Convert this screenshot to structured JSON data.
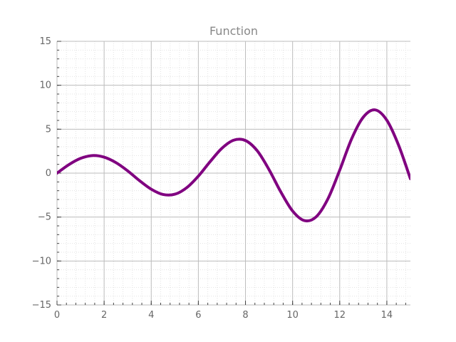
{
  "chart_data": {
    "type": "line",
    "title": "Function",
    "xlabel": "",
    "ylabel": "",
    "xlim": [
      0,
      15
    ],
    "ylim": [
      -15,
      15
    ],
    "grid": true,
    "minor_grid": true,
    "x_ticks": [
      0,
      2,
      4,
      6,
      8,
      10,
      12,
      14
    ],
    "x_tick_labels": [
      "0",
      "2",
      "4",
      "6",
      "8",
      "10",
      "12",
      "14"
    ],
    "y_ticks": [
      -15,
      -10,
      -5,
      0,
      5,
      10,
      15
    ],
    "y_tick_labels": [
      "−15",
      "−10",
      "−5",
      "0",
      "5",
      "10",
      "15"
    ],
    "series": [
      {
        "color": "#800080",
        "x": [
          0,
          0.5,
          1,
          1.5,
          2,
          2.5,
          3,
          3.5,
          4,
          4.5,
          5,
          5.5,
          6,
          6.5,
          7,
          7.5,
          8,
          8.5,
          9,
          9.5,
          10,
          10.5,
          11,
          11.5,
          12,
          12.5,
          13,
          13.5,
          14,
          14.5,
          15
        ],
        "y": [
          0,
          0.96,
          1.68,
          2.0,
          1.82,
          1.2,
          0.26,
          -0.85,
          -1.83,
          -2.43,
          -2.4,
          -1.67,
          -0.34,
          1.31,
          2.83,
          3.75,
          3.71,
          2.54,
          0.4,
          -2.14,
          -4.31,
          -5.4,
          -4.97,
          -2.92,
          0.34,
          3.87,
          6.37,
          7.2,
          6.02,
          3.17,
          -0.64
        ]
      }
    ]
  }
}
